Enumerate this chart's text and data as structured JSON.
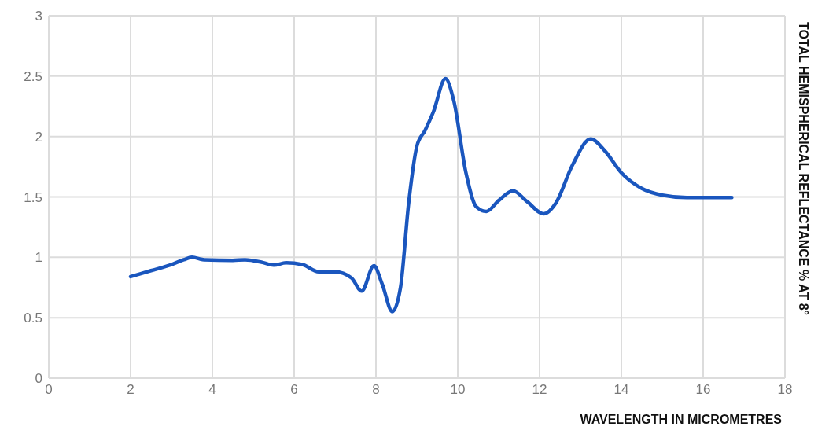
{
  "chart_data": {
    "type": "line",
    "xlabel": "WAVELENGTH IN MICROMETRES",
    "ylabel": "TOTAL HEMISPHERICAL REFLECTANCE % AT 8°",
    "x": [
      2.0,
      2.5,
      3.0,
      3.3,
      3.5,
      3.8,
      4.5,
      4.8,
      5.2,
      5.5,
      5.8,
      6.2,
      6.6,
      7.0,
      7.4,
      7.65,
      7.95,
      8.15,
      8.4,
      8.6,
      8.8,
      9.0,
      9.2,
      9.4,
      9.7,
      9.9,
      10.2,
      10.45,
      10.7,
      11.0,
      11.35,
      11.7,
      12.1,
      12.4,
      12.8,
      13.25,
      13.6,
      14.0,
      14.5,
      15.0,
      15.6,
      16.7
    ],
    "series": [
      {
        "color": "#1a56be",
        "values": [
          0.84,
          0.89,
          0.94,
          0.98,
          1.0,
          0.98,
          0.975,
          0.98,
          0.96,
          0.935,
          0.955,
          0.94,
          0.88,
          0.88,
          0.83,
          0.72,
          0.93,
          0.78,
          0.55,
          0.75,
          1.45,
          1.92,
          2.05,
          2.2,
          2.48,
          2.3,
          1.7,
          1.42,
          1.38,
          1.47,
          1.55,
          1.46,
          1.36,
          1.45,
          1.76,
          1.98,
          1.88,
          1.7,
          1.57,
          1.515,
          1.495,
          1.495
        ]
      }
    ],
    "xlim": [
      0,
      18
    ],
    "xticks": [
      0,
      2,
      4,
      6,
      8,
      10,
      12,
      14,
      16,
      18
    ],
    "ylim": [
      0,
      3
    ],
    "yticks": [
      0,
      0.5,
      1,
      1.5,
      2,
      2.5,
      3
    ],
    "grid": true,
    "marker": "none",
    "line_style": "solid"
  }
}
